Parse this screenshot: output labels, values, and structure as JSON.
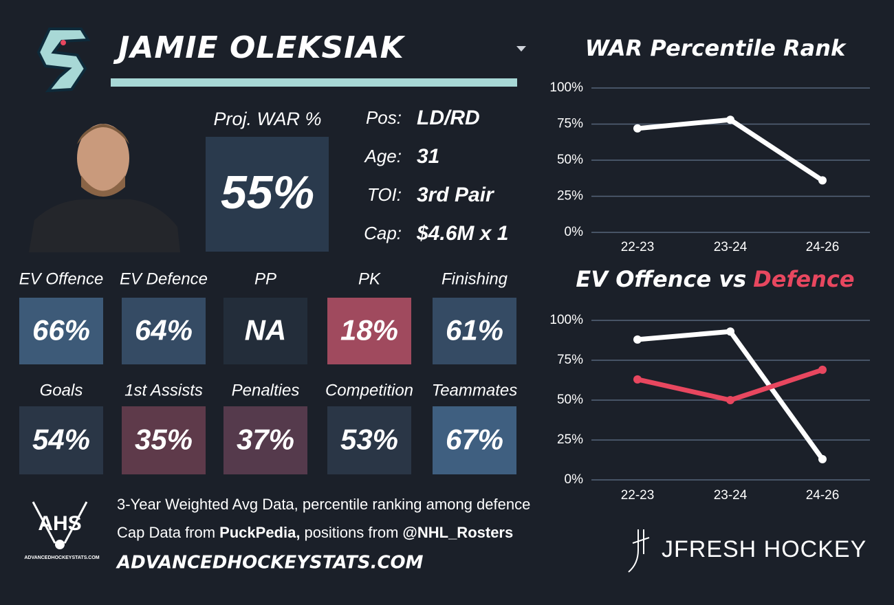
{
  "player": {
    "name": "JAMIE OLEKSIAK"
  },
  "projection": {
    "label": "Proj. WAR %",
    "value": "55%"
  },
  "info": [
    {
      "label": "Pos:",
      "value": "LD/RD"
    },
    {
      "label": "Age:",
      "value": "31"
    },
    {
      "label": "TOI:",
      "value": "3rd Pair"
    },
    {
      "label": "Cap:",
      "value": "$4.6M x 1"
    }
  ],
  "tiles": [
    [
      {
        "label": "EV Offence",
        "value": "66%",
        "color": "#3d5a78"
      },
      {
        "label": "EV Defence",
        "value": "64%",
        "color": "#354b64"
      },
      {
        "label": "PP",
        "value": "NA",
        "color": "#232d3a"
      },
      {
        "label": "PK",
        "value": "18%",
        "color": "#a04a5e"
      },
      {
        "label": "Finishing",
        "value": "61%",
        "color": "#354b64"
      }
    ],
    [
      {
        "label": "Goals",
        "value": "54%",
        "color": "#2a3646"
      },
      {
        "label": "1st Assists",
        "value": "35%",
        "color": "#5e3a4a"
      },
      {
        "label": "Penalties",
        "value": "37%",
        "color": "#553a4c"
      },
      {
        "label": "Competition",
        "value": "53%",
        "color": "#2a3646"
      },
      {
        "label": "Teammates",
        "value": "67%",
        "color": "#3f5f80"
      }
    ]
  ],
  "footer": {
    "note": "3-Year Weighted Avg Data, percentile ranking among defence",
    "sources": [
      {
        "text": "Cap Data from",
        "bold": false
      },
      {
        "text": "PuckPedia,",
        "bold": true
      },
      {
        "text": "positions from",
        "bold": false
      },
      {
        "text": "@NHL_Rosters",
        "bold": true
      }
    ],
    "site": "ADVANCEDHOCKEYSTATS.COM",
    "logo": "AHS",
    "logo_caption": "ADVANCEDHOCKEYSTATS.COM",
    "brand": "JFRESH HOCKEY"
  },
  "chart_data": [
    {
      "type": "line",
      "title": [
        {
          "text": "WAR Percentile Rank",
          "color": "#ffffff"
        }
      ],
      "categories": [
        "22-23",
        "23-24",
        "24-26"
      ],
      "series": [
        {
          "color": "#ffffff",
          "values": [
            72,
            78,
            36
          ]
        }
      ],
      "ylim": [
        0,
        100
      ],
      "yticks": [
        {
          "value": 0,
          "label": "0%"
        },
        {
          "value": 25,
          "label": "25%"
        },
        {
          "value": 50,
          "label": "50%"
        },
        {
          "value": 75,
          "label": "75%"
        },
        {
          "value": 100,
          "label": "100%"
        }
      ],
      "grid": true
    },
    {
      "type": "line",
      "title": [
        {
          "text": "EV Offence vs",
          "color": "#ffffff"
        },
        {
          "text": "Defence",
          "color": "#e8475f"
        }
      ],
      "categories": [
        "22-23",
        "23-24",
        "24-26"
      ],
      "series": [
        {
          "color": "#ffffff",
          "values": [
            88,
            93,
            13
          ]
        },
        {
          "color": "#e8475f",
          "values": [
            63,
            50,
            69
          ]
        }
      ],
      "ylim": [
        0,
        100
      ],
      "yticks": [
        {
          "value": 0,
          "label": "0%"
        },
        {
          "value": 25,
          "label": "25%"
        },
        {
          "value": 50,
          "label": "50%"
        },
        {
          "value": 75,
          "label": "75%"
        },
        {
          "value": 100,
          "label": "100%"
        }
      ],
      "grid": true
    }
  ]
}
